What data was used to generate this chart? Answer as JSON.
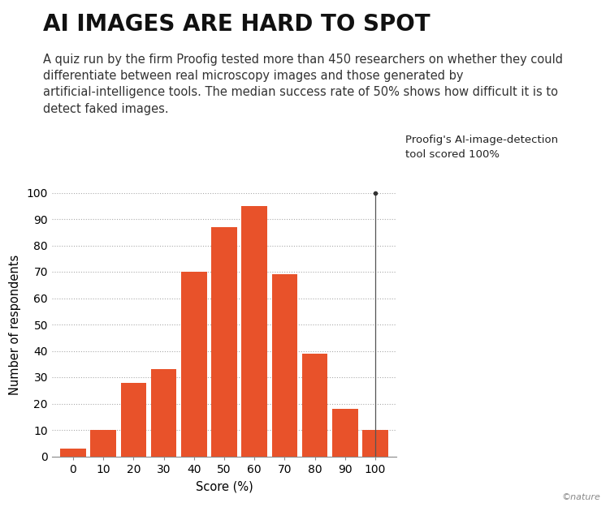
{
  "title": "AI IMAGES ARE HARD TO SPOT",
  "subtitle": "A quiz run by the firm Proofig tested more than 450 researchers on whether they could\ndifferentiate between real microscopy images and those generated by\nartificial-intelligence tools. The median success rate of 50% shows how difficult it is to\ndetect faked images.",
  "categories": [
    0,
    10,
    20,
    30,
    40,
    50,
    60,
    70,
    80,
    90,
    100
  ],
  "values": [
    3,
    10,
    28,
    33,
    70,
    87,
    95,
    69,
    39,
    18,
    10
  ],
  "bar_color": "#E8522A",
  "xlabel": "Score (%)",
  "ylabel": "Number of respondents",
  "ylim": [
    0,
    100
  ],
  "yticks": [
    0,
    10,
    20,
    30,
    40,
    50,
    60,
    70,
    80,
    90,
    100
  ],
  "annotation_line1": "Proofig's AI-image-detection",
  "annotation_line2": "tool scored 100%",
  "background_color": "#ffffff",
  "nature_credit": "©nature",
  "title_fontsize": 20,
  "subtitle_fontsize": 10.5,
  "axis_label_fontsize": 10.5,
  "tick_fontsize": 10
}
